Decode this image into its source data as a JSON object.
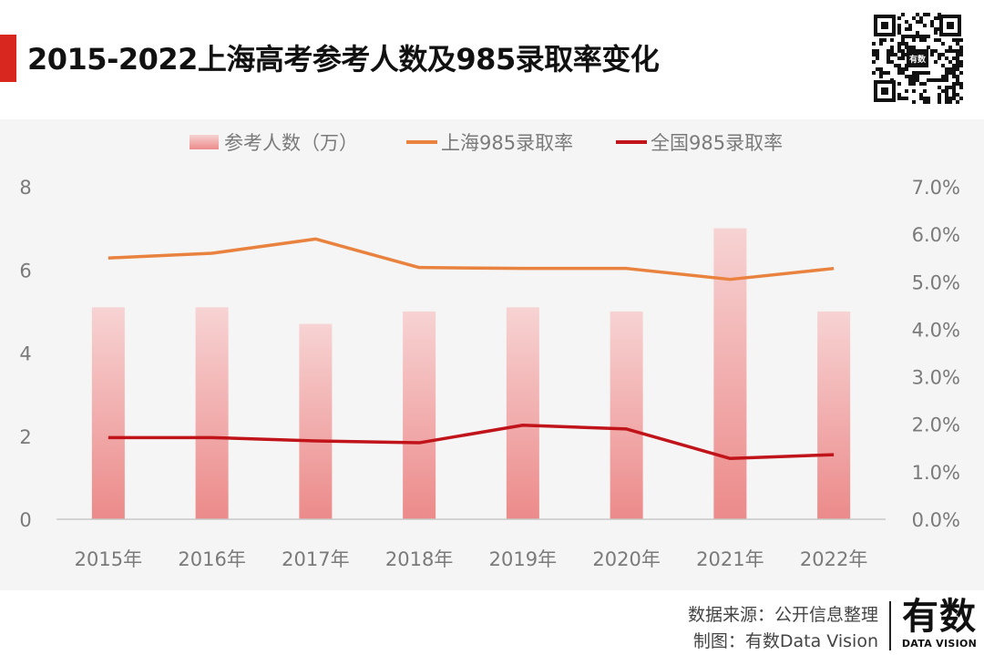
{
  "title": "2015-2022上海高考参考人数及985录取率变化",
  "colors": {
    "accent": "#d7271f",
    "bar_top": "#f7d3d3",
    "bar_bottom": "#ec8a8a",
    "shanghai_line": "#e9823e",
    "national_line": "#c0141a",
    "axis_text": "#7a7a7a",
    "panel_bg": "#f5f5f5"
  },
  "footer": {
    "source": "数据来源：公开信息整理",
    "maker": "制图：有数Data Vision"
  },
  "brand": {
    "cn": "有数",
    "en": "DATA VISION"
  },
  "qr": {
    "center_label": "有数"
  },
  "chart_data": {
    "type": "bar",
    "categories": [
      "2015年",
      "2016年",
      "2017年",
      "2018年",
      "2019年",
      "2020年",
      "2021年",
      "2022年"
    ],
    "series": [
      {
        "name": "参考人数（万）",
        "type": "bar",
        "axis": "left",
        "values": [
          5.1,
          5.1,
          4.7,
          5.0,
          5.1,
          5.0,
          7.0,
          5.0
        ]
      },
      {
        "name": "上海985录取率",
        "type": "line",
        "axis": "right",
        "values": [
          5.5,
          5.6,
          5.9,
          5.3,
          5.28,
          5.28,
          5.05,
          5.28
        ]
      },
      {
        "name": "全国985录取率",
        "type": "line",
        "axis": "right",
        "values": [
          1.72,
          1.72,
          1.65,
          1.61,
          1.98,
          1.9,
          1.28,
          1.36
        ]
      }
    ],
    "left_axis": {
      "min": 0,
      "max": 8,
      "ticks": [
        "0",
        "2",
        "4",
        "6",
        "8"
      ]
    },
    "right_axis": {
      "min": 0,
      "max": 7,
      "ticks": [
        "0.0%",
        "1.0%",
        "2.0%",
        "3.0%",
        "4.0%",
        "5.0%",
        "6.0%",
        "7.0%"
      ]
    },
    "legend": [
      "参考人数（万）",
      "上海985录取率",
      "全国985录取率"
    ],
    "legend_position": "top",
    "grid": false
  }
}
